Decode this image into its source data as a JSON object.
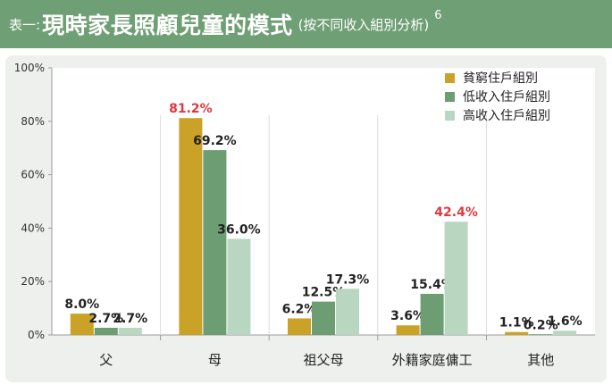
{
  "header": {
    "prefix": "表一:",
    "title": "現時家長照顧兒童的模式",
    "subtitle": "(按不同收入組別分析)",
    "footnote": "6"
  },
  "colors": {
    "header_bg": "#6f9f74",
    "panel_bg": "#eef0ee",
    "highlight_label": "#e0393e"
  },
  "chart_data": {
    "type": "bar",
    "categories": [
      "父",
      "母",
      "祖父母",
      "外籍家庭傭工",
      "其他"
    ],
    "series": [
      {
        "name": "貧窮住戶組別",
        "color": "#c9a227",
        "values": [
          8.0,
          81.2,
          6.2,
          3.6,
          1.1
        ],
        "labels": [
          "8.0%",
          "81.2%",
          "6.2%",
          "3.6%",
          "1.1%"
        ]
      },
      {
        "name": "低收入住戶組別",
        "color": "#6d9e73",
        "values": [
          2.7,
          69.2,
          12.5,
          15.4,
          0.2
        ],
        "labels": [
          "2.7%",
          "69.2%",
          "12.5%",
          "15.4%",
          "0.2%"
        ]
      },
      {
        "name": "高收入住戶組別",
        "color": "#b9d6c0",
        "values": [
          2.7,
          36.0,
          17.3,
          42.4,
          1.6
        ],
        "labels": [
          "2.7%",
          "36.0%",
          "17.3%",
          "42.4%",
          "1.6%"
        ]
      }
    ],
    "highlighted": [
      [
        0,
        1
      ],
      [
        2,
        3
      ]
    ],
    "yticks": [
      "0%",
      "20%",
      "40%",
      "60%",
      "80%",
      "100%"
    ],
    "ylim": [
      0,
      100
    ],
    "legend_position": "top-right",
    "grid": false
  }
}
